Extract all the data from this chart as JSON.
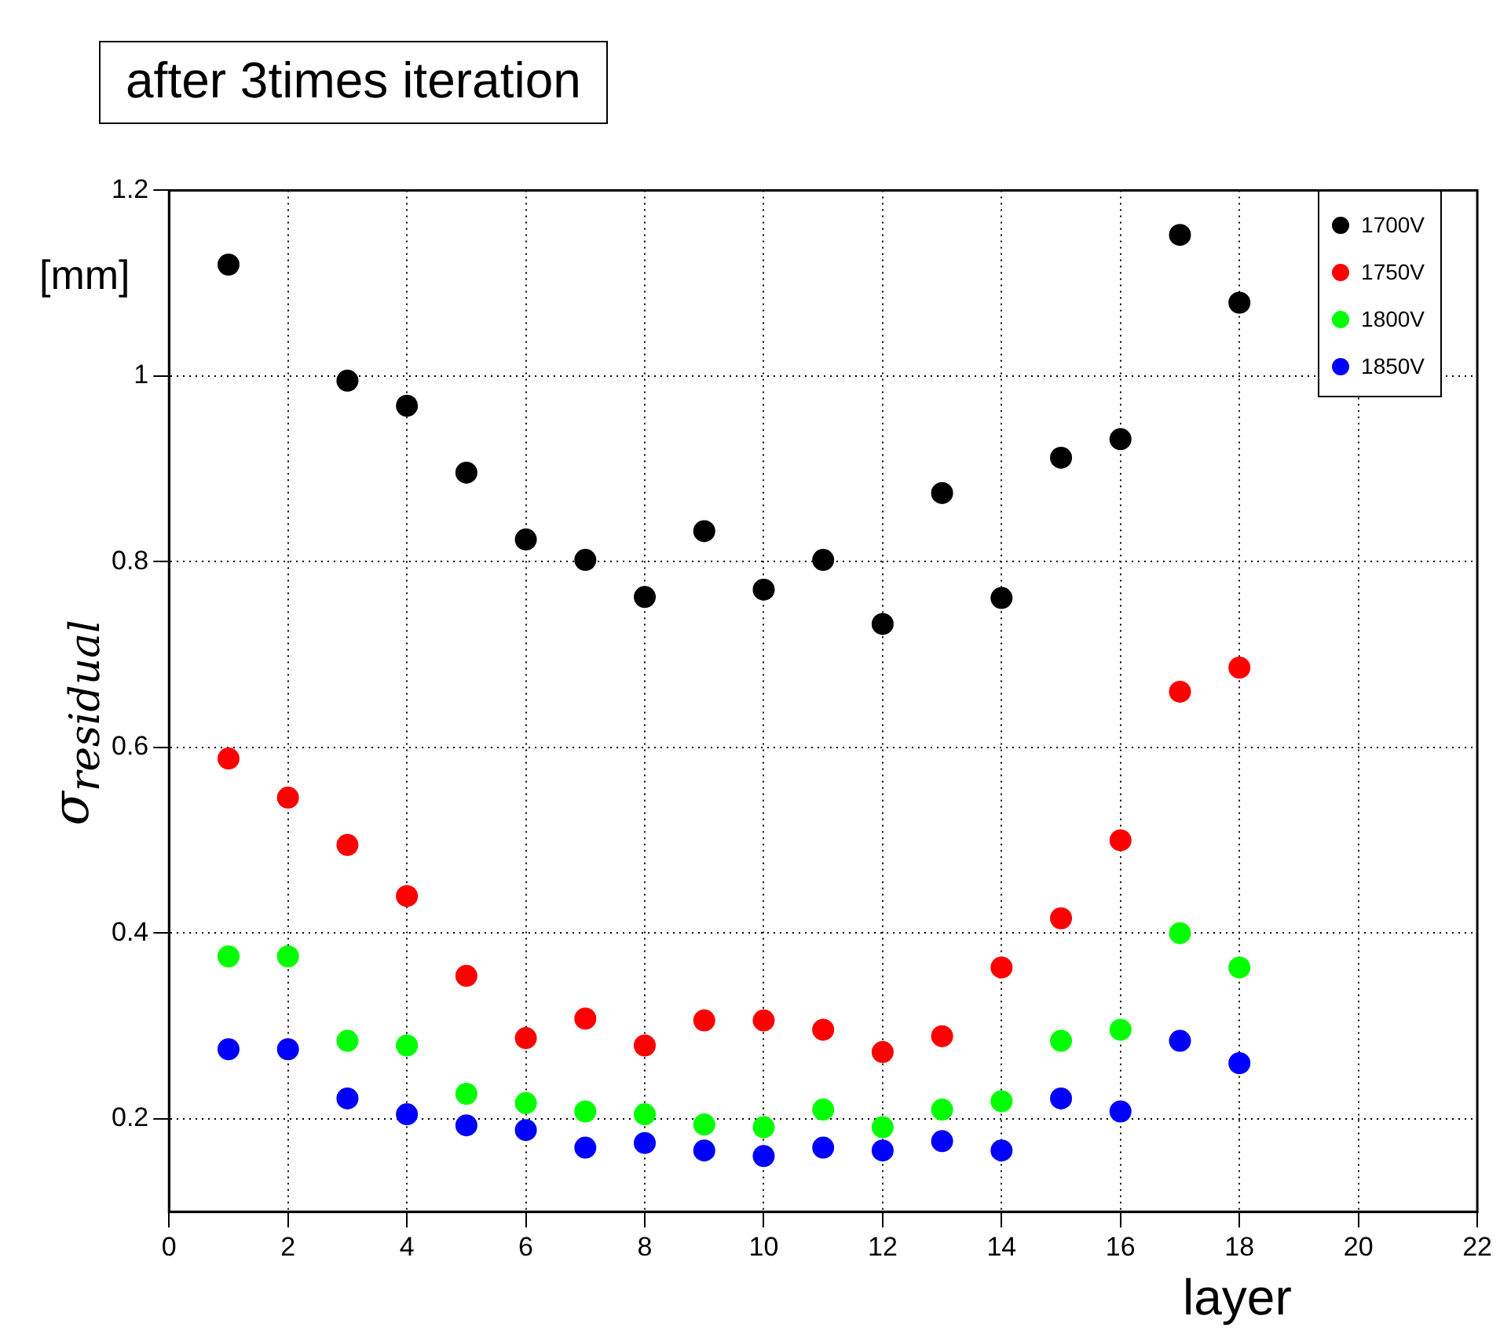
{
  "chart_data": {
    "type": "scatter",
    "title": "after 3times iteration",
    "xlabel": "layer",
    "ylabel": "σ$_{residual}$",
    "annotations": [
      "[mm]"
    ],
    "x": [
      1,
      2,
      3,
      4,
      5,
      6,
      7,
      8,
      9,
      10,
      11,
      12,
      13,
      14,
      15,
      16,
      17,
      18
    ],
    "series": [
      {
        "name": "1700V",
        "color": "#000000",
        "values": [
          1.12,
          null,
          0.995,
          0.968,
          0.896,
          0.824,
          0.802,
          0.762,
          0.833,
          0.77,
          0.802,
          0.733,
          0.874,
          0.761,
          0.912,
          0.932,
          1.152,
          1.079
        ]
      },
      {
        "name": "1750V",
        "color": "#ff0000",
        "values": [
          0.588,
          0.546,
          0.495,
          0.44,
          0.354,
          0.287,
          0.308,
          0.279,
          0.306,
          0.306,
          0.296,
          0.272,
          0.289,
          0.363,
          0.416,
          0.5,
          0.66,
          0.686
        ]
      },
      {
        "name": "1800V",
        "color": "#00ff00",
        "values": [
          0.375,
          0.375,
          0.284,
          0.279,
          0.227,
          0.217,
          0.208,
          0.205,
          0.194,
          0.191,
          0.21,
          0.191,
          0.21,
          0.219,
          0.284,
          0.296,
          0.4,
          0.363
        ]
      },
      {
        "name": "1850V",
        "color": "#0000ff",
        "values": [
          0.275,
          0.275,
          0.222,
          0.205,
          0.193,
          0.188,
          0.169,
          0.174,
          0.166,
          0.16,
          0.169,
          0.166,
          0.176,
          0.166,
          0.222,
          0.208,
          0.284,
          0.26
        ]
      }
    ],
    "xlim": [
      0,
      22
    ],
    "xticks": [
      0,
      2,
      4,
      6,
      8,
      10,
      12,
      14,
      16,
      18,
      20,
      22
    ],
    "ylim": [
      0.1,
      1.2
    ],
    "yticks": [
      0.2,
      0.4,
      0.6,
      0.8,
      1,
      1.2
    ],
    "grid": true,
    "legend": "top right",
    "marker": "circle"
  }
}
